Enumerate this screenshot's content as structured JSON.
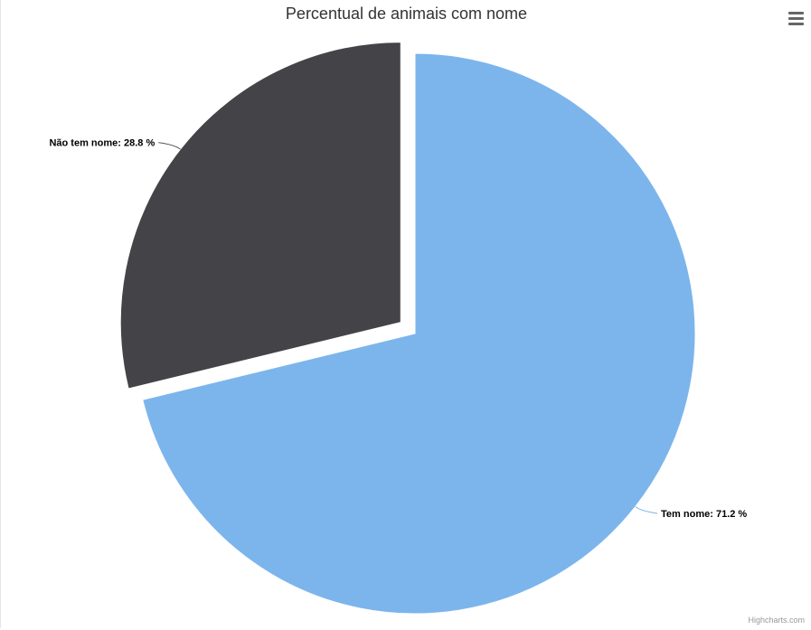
{
  "title": "Percentual de animais com nome",
  "credits": "Highcharts.com",
  "menu": {
    "icon": "hamburger-menu-icon"
  },
  "chart_data": {
    "type": "pie",
    "title": "Percentual de animais com nome",
    "value_suffix": " %",
    "slices": [
      {
        "name": "Tem nome",
        "value": 71.2,
        "color": "#7cb5ec",
        "sliced": false
      },
      {
        "name": "Não tem nome",
        "value": 28.8,
        "color": "#434348",
        "sliced": true
      }
    ]
  }
}
